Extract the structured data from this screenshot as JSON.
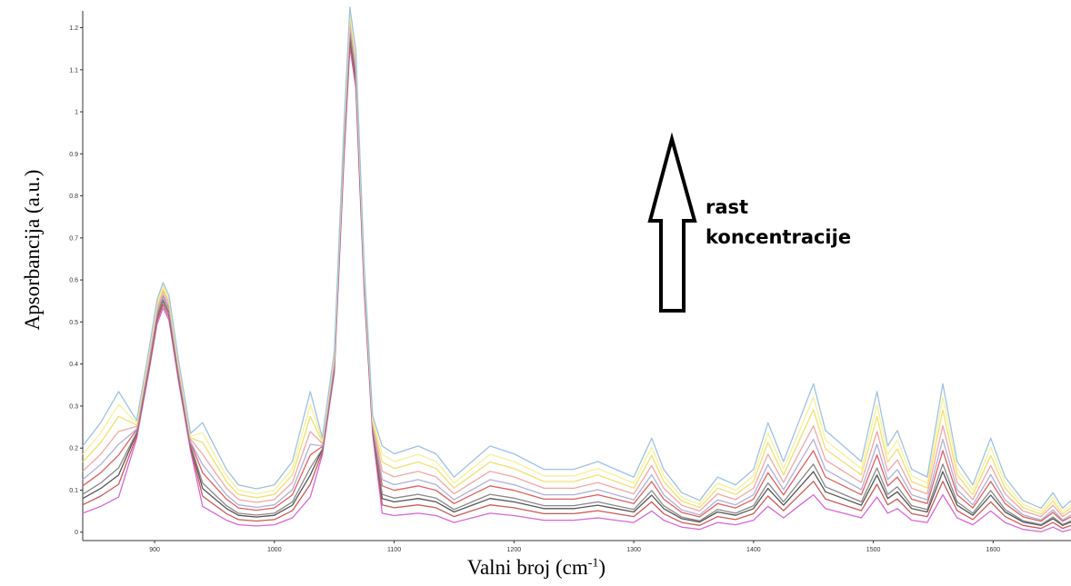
{
  "chart_data": {
    "type": "line",
    "xlabel": "Valni broj (cm",
    "xlabel_sup": "-1",
    "xlabel_close": ")",
    "ylabel": "Apsorbancija (a.u.)",
    "xlim": [
      840,
      1665
    ],
    "ylim": [
      -0.02,
      1.24
    ],
    "x_ticks": [
      "900",
      "1000",
      "1100",
      "1200",
      "1300",
      "1400",
      "1500",
      "1600"
    ],
    "y_ticks": [
      "0",
      "0.1",
      "0.2",
      "0.3",
      "0.4",
      "0.5",
      "0.6",
      "0.7",
      "0.8",
      "0.9",
      "1",
      "1.1",
      "1.2"
    ],
    "grid": false,
    "annotation": {
      "line1": "rast",
      "line2": "koncentracije",
      "arrow": "up"
    },
    "base_spectrum": [
      [
        840,
        0.1
      ],
      [
        855,
        0.13
      ],
      [
        870,
        0.17
      ],
      [
        885,
        0.24
      ],
      [
        895,
        0.4
      ],
      [
        902,
        0.52
      ],
      [
        907,
        0.56
      ],
      [
        912,
        0.53
      ],
      [
        920,
        0.38
      ],
      [
        930,
        0.21
      ],
      [
        940,
        0.13
      ],
      [
        950,
        0.1
      ],
      [
        960,
        0.07
      ],
      [
        970,
        0.05
      ],
      [
        985,
        0.045
      ],
      [
        1000,
        0.05
      ],
      [
        1015,
        0.08
      ],
      [
        1030,
        0.17
      ],
      [
        1040,
        0.2
      ],
      [
        1050,
        0.4
      ],
      [
        1058,
        0.92
      ],
      [
        1063,
        1.2
      ],
      [
        1068,
        1.1
      ],
      [
        1075,
        0.6
      ],
      [
        1082,
        0.25
      ],
      [
        1090,
        0.1
      ],
      [
        1100,
        0.09
      ],
      [
        1110,
        0.095
      ],
      [
        1120,
        0.1
      ],
      [
        1135,
        0.09
      ],
      [
        1150,
        0.06
      ],
      [
        1165,
        0.08
      ],
      [
        1180,
        0.1
      ],
      [
        1200,
        0.09
      ],
      [
        1225,
        0.07
      ],
      [
        1250,
        0.07
      ],
      [
        1270,
        0.08
      ],
      [
        1285,
        0.07
      ],
      [
        1300,
        0.06
      ],
      [
        1315,
        0.11
      ],
      [
        1325,
        0.07
      ],
      [
        1340,
        0.04
      ],
      [
        1355,
        0.03
      ],
      [
        1370,
        0.06
      ],
      [
        1385,
        0.05
      ],
      [
        1400,
        0.07
      ],
      [
        1412,
        0.13
      ],
      [
        1425,
        0.08
      ],
      [
        1440,
        0.14
      ],
      [
        1450,
        0.18
      ],
      [
        1460,
        0.12
      ],
      [
        1475,
        0.1
      ],
      [
        1490,
        0.08
      ],
      [
        1503,
        0.17
      ],
      [
        1512,
        0.1
      ],
      [
        1520,
        0.12
      ],
      [
        1532,
        0.07
      ],
      [
        1545,
        0.06
      ],
      [
        1558,
        0.18
      ],
      [
        1570,
        0.08
      ],
      [
        1583,
        0.05
      ],
      [
        1598,
        0.11
      ],
      [
        1610,
        0.06
      ],
      [
        1625,
        0.03
      ],
      [
        1640,
        0.02
      ],
      [
        1650,
        0.04
      ],
      [
        1658,
        0.02
      ],
      [
        1665,
        0.03
      ]
    ],
    "series": [
      {
        "color": "#d966d6",
        "offset": -0.01,
        "scale": 0.55
      },
      {
        "color": "#cc5a5a",
        "offset": -0.005,
        "scale": 0.7
      },
      {
        "color": "#555555",
        "offset": 0.0,
        "scale": 0.8
      },
      {
        "color": "#888888",
        "offset": 0.0,
        "scale": 0.9
      },
      {
        "color": "#e06060",
        "offset": 0.005,
        "scale": 1.05
      },
      {
        "color": "#b0b0d8",
        "offset": 0.005,
        "scale": 1.2
      },
      {
        "color": "#f4a6a6",
        "offset": 0.01,
        "scale": 1.35
      },
      {
        "color": "#f0e070",
        "offset": 0.012,
        "scale": 1.55
      },
      {
        "color": "#f7f09a",
        "offset": 0.015,
        "scale": 1.7
      },
      {
        "color": "#9ec2e0",
        "offset": 0.02,
        "scale": 1.85
      }
    ]
  }
}
